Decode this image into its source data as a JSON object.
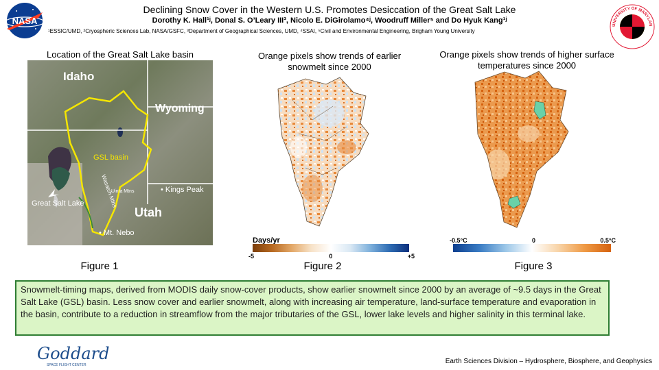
{
  "header": {
    "title": "Declining Snow Cover in the Western U.S. Promotes Desiccation of the Great Salt Lake",
    "authors": "Dorothy K. Hall¹ʲ, Donal S. O’Leary III³, Nicolo E. DiGirolamo⁴ʲ, Woodruff Miller⁵ and Do Hyuk Kang¹ʲ",
    "affiliations": "¹ESSIC/UMD, ²Cryospheric Sciences Lab, NASA/GSFC, ³Department of Geographical Sciences, UMD, ⁴SSAI, ⁵Civil and Environmental Engineering, Brigham Young University",
    "nasa_logo_text": "NASA",
    "umd_seal_text": "UNIVERSITY OF MARYLAND"
  },
  "figures": {
    "fig1": {
      "caption": "Location of the Great Salt Lake basin",
      "label": "Figure 1",
      "map_labels": {
        "idaho": "Idaho",
        "wyoming": "Wyoming",
        "gsl_basin": "GSL basin",
        "wasatch": "Wasatch Mtns",
        "uinta": "Uinta Mtns",
        "kings_peak": "Kings Peak",
        "great_salt_lake": "Great Salt Lake",
        "utah": "Utah",
        "mt_nebo": "Mt. Nebo"
      }
    },
    "fig2": {
      "caption": "Orange pixels show trends of earlier snowmelt since 2000",
      "label": "Figure 2",
      "colorbar_title": "Days/yr",
      "colorbar_ticks": [
        "-5",
        "0",
        "+5"
      ]
    },
    "fig3": {
      "caption": "Orange pixels show trends of higher surface temperatures since 2000",
      "label": "Figure 3",
      "colorbar_ticks": [
        "-0.5°C",
        "0",
        "0.5°C"
      ]
    }
  },
  "summary": "Snowmelt-timing maps, derived from MODIS daily snow-cover products, show earlier snowmelt since 2000 by an average of ~9.5 days in the Great Salt Lake (GSL) basin. Less snow cover and earlier snowmelt, along with increasing air temperature, land-surface temperature and evaporation in the basin, contribute to a reduction in streamflow from the major tributaries of the GSL, lower lake levels and higher salinity in this terminal lake.",
  "footer": {
    "goddard_logo_text": "Goddard",
    "goddard_sub": "SPACE FLIGHT CENTER",
    "division": "Earth Sciences Division – Hydrosphere, Biosphere, and Geophysics"
  },
  "colors": {
    "summary_bg": "#dbf5c6",
    "summary_border": "#2e7d32",
    "basin_outline": "#f5e600",
    "trend_orange": "#e8893a",
    "trend_blue": "#5d95cf",
    "nasa_blue": "#0b3d91",
    "umd_red": "#e21833"
  }
}
